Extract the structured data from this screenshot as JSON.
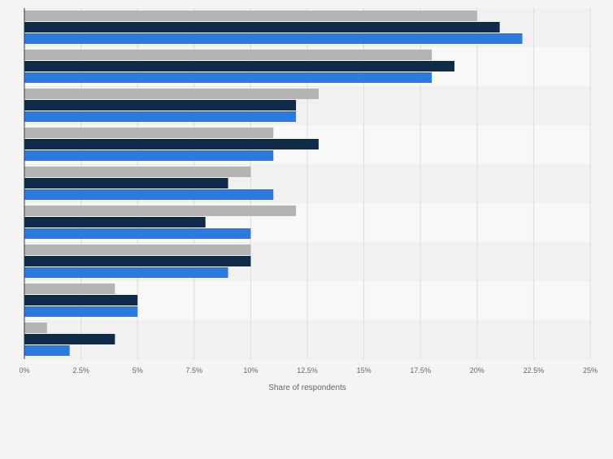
{
  "chart_data": {
    "type": "bar",
    "orientation": "horizontal",
    "categories": [
      "",
      "",
      "",
      "",
      "",
      "",
      "",
      "",
      ""
    ],
    "series": [
      {
        "color": "#b4b4b4",
        "values": [
          20,
          18,
          13,
          11,
          10,
          12,
          10,
          4,
          1
        ]
      },
      {
        "color": "#0f2a4a",
        "values": [
          21,
          19,
          12,
          13,
          9,
          8,
          10,
          5,
          4
        ]
      },
      {
        "color": "#2a7ae2",
        "values": [
          22,
          18,
          12,
          11,
          11,
          10,
          9,
          5,
          2
        ]
      }
    ],
    "xlabel": "Share of respondents",
    "xlim": [
      0,
      25
    ],
    "ticks": [
      "0%",
      "2.5%",
      "5%",
      "7.5%",
      "10%",
      "12.5%",
      "15%",
      "17.5%",
      "20%",
      "22.5%",
      "25%"
    ],
    "tick_values": [
      0,
      2.5,
      5,
      7.5,
      10,
      12.5,
      15,
      17.5,
      20,
      22.5,
      25
    ],
    "grid": true,
    "legend": "none"
  }
}
